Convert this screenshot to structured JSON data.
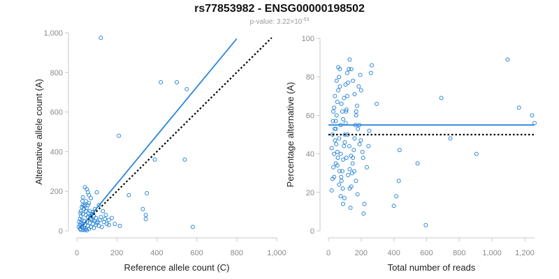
{
  "header": {
    "title": "rs77853982 - ENSG00000198502",
    "pvalue_prefix": "p-value: 3.22×10",
    "pvalue_exponent": "-53"
  },
  "colors": {
    "points": "#2b86d9",
    "fit_line": "#2b86d9",
    "reference_line": "#000000",
    "axis": "#c8c8c8"
  },
  "chart_data": [
    {
      "type": "scatter",
      "xlabel": "Reference allele count (C)",
      "ylabel": "Alternative allele count (A)",
      "xlim": [
        0,
        1000
      ],
      "ylim": [
        0,
        1000
      ],
      "xticks": [
        0,
        200,
        400,
        600,
        800,
        1000
      ],
      "yticks": [
        0,
        200,
        400,
        600,
        800,
        1000
      ],
      "xtick_labels": [
        "0",
        "200",
        "400",
        "600",
        "800",
        "1,000"
      ],
      "ytick_labels": [
        "0",
        "200",
        "400",
        "600",
        "800",
        "1,000"
      ],
      "grid": false,
      "fit_line": {
        "x": [
          15,
          800
        ],
        "y": [
          12,
          970
        ],
        "style": "solid"
      },
      "reference_line": {
        "x": [
          15,
          975
        ],
        "y": [
          15,
          975
        ],
        "style": "dotted"
      },
      "points": [
        [
          120,
          975
        ],
        [
          420,
          750
        ],
        [
          500,
          750
        ],
        [
          550,
          715
        ],
        [
          210,
          480
        ],
        [
          390,
          360
        ],
        [
          540,
          360
        ],
        [
          580,
          20
        ],
        [
          350,
          190
        ],
        [
          260,
          180
        ],
        [
          330,
          110
        ],
        [
          345,
          80
        ],
        [
          345,
          60
        ],
        [
          215,
          25
        ],
        [
          40,
          220
        ],
        [
          50,
          210
        ],
        [
          55,
          195
        ],
        [
          60,
          180
        ],
        [
          70,
          165
        ],
        [
          30,
          170
        ],
        [
          45,
          150
        ],
        [
          100,
          195
        ],
        [
          110,
          130
        ],
        [
          130,
          100
        ],
        [
          120,
          70
        ],
        [
          140,
          60
        ],
        [
          160,
          55
        ],
        [
          150,
          35
        ],
        [
          125,
          20
        ],
        [
          90,
          110
        ],
        [
          80,
          95
        ],
        [
          60,
          140
        ],
        [
          55,
          130
        ],
        [
          40,
          130
        ],
        [
          30,
          130
        ],
        [
          25,
          120
        ],
        [
          35,
          110
        ],
        [
          20,
          100
        ],
        [
          45,
          100
        ],
        [
          65,
          100
        ],
        [
          75,
          85
        ],
        [
          85,
          75
        ],
        [
          95,
          65
        ],
        [
          70,
          60
        ],
        [
          55,
          70
        ],
        [
          45,
          80
        ],
        [
          30,
          85
        ],
        [
          20,
          75
        ],
        [
          15,
          60
        ],
        [
          25,
          55
        ],
        [
          35,
          50
        ],
        [
          50,
          45
        ],
        [
          65,
          40
        ],
        [
          80,
          35
        ],
        [
          95,
          30
        ],
        [
          105,
          45
        ],
        [
          110,
          25
        ],
        [
          20,
          40
        ],
        [
          30,
          35
        ],
        [
          40,
          30
        ],
        [
          55,
          25
        ],
        [
          70,
          20
        ],
        [
          85,
          15
        ],
        [
          15,
          30
        ],
        [
          25,
          20
        ],
        [
          35,
          15
        ],
        [
          45,
          10
        ],
        [
          60,
          10
        ],
        [
          15,
          10
        ],
        [
          20,
          5
        ],
        [
          30,
          5
        ],
        [
          40,
          5
        ],
        [
          50,
          3
        ],
        [
          10,
          20
        ],
        [
          12,
          45
        ],
        [
          18,
          90
        ],
        [
          28,
          150
        ],
        [
          38,
          125
        ],
        [
          48,
          115
        ],
        [
          58,
          90
        ],
        [
          68,
          75
        ],
        [
          78,
          55
        ],
        [
          88,
          50
        ],
        [
          98,
          40
        ],
        [
          115,
          55
        ],
        [
          135,
          45
        ],
        [
          145,
          80
        ],
        [
          160,
          30
        ],
        [
          175,
          65
        ],
        [
          190,
          35
        ]
      ]
    },
    {
      "type": "scatter",
      "xlabel": "Total number of reads",
      "ylabel": "Percentage alternative (A)",
      "xlim": [
        0,
        1260
      ],
      "ylim": [
        0,
        100
      ],
      "xticks": [
        0,
        200,
        400,
        600,
        800,
        1000,
        1200
      ],
      "yticks": [
        0,
        20,
        40,
        60,
        80,
        100
      ],
      "xtick_labels": [
        "0",
        "200",
        "400",
        "600",
        "800",
        "1,000",
        "1,200"
      ],
      "ytick_labels": [
        "0",
        "20",
        "40",
        "60",
        "80",
        "100"
      ],
      "grid": false,
      "fit_line": {
        "x": [
          0,
          1260
        ],
        "y": [
          55,
          55
        ],
        "style": "solid"
      },
      "reference_line": {
        "x": [
          0,
          1260
        ],
        "y": [
          50,
          50
        ],
        "style": "dotted"
      },
      "points": [
        [
          1095,
          89
        ],
        [
          1165,
          64
        ],
        [
          1245,
          60
        ],
        [
          1260,
          56
        ],
        [
          690,
          69
        ],
        [
          745,
          48
        ],
        [
          905,
          40
        ],
        [
          595,
          3
        ],
        [
          545,
          35
        ],
        [
          435,
          42
        ],
        [
          430,
          26
        ],
        [
          415,
          18
        ],
        [
          400,
          13
        ],
        [
          295,
          66
        ],
        [
          265,
          86
        ],
        [
          260,
          82
        ],
        [
          250,
          52
        ],
        [
          245,
          44
        ],
        [
          235,
          33
        ],
        [
          220,
          14
        ],
        [
          215,
          9
        ],
        [
          200,
          73
        ],
        [
          195,
          81
        ],
        [
          185,
          75
        ],
        [
          175,
          65
        ],
        [
          170,
          60
        ],
        [
          165,
          55
        ],
        [
          160,
          48
        ],
        [
          155,
          42
        ],
        [
          150,
          38
        ],
        [
          145,
          30
        ],
        [
          140,
          23
        ],
        [
          135,
          12
        ],
        [
          130,
          89
        ],
        [
          125,
          84
        ],
        [
          120,
          77
        ],
        [
          115,
          70
        ],
        [
          110,
          63
        ],
        [
          105,
          56
        ],
        [
          100,
          50
        ],
        [
          95,
          44
        ],
        [
          90,
          37
        ],
        [
          85,
          31
        ],
        [
          80,
          26
        ],
        [
          75,
          18
        ],
        [
          70,
          84
        ],
        [
          65,
          80
        ],
        [
          60,
          73
        ],
        [
          55,
          67
        ],
        [
          50,
          60
        ],
        [
          45,
          53
        ],
        [
          40,
          47
        ],
        [
          35,
          40
        ],
        [
          30,
          33
        ],
        [
          25,
          27
        ],
        [
          20,
          21
        ],
        [
          115,
          82
        ],
        [
          105,
          76
        ],
        [
          95,
          69
        ],
        [
          85,
          62
        ],
        [
          75,
          55
        ],
        [
          65,
          48
        ],
        [
          55,
          41
        ],
        [
          45,
          35
        ],
        [
          35,
          28
        ],
        [
          30,
          62
        ],
        [
          40,
          70
        ],
        [
          50,
          78
        ],
        [
          60,
          85
        ],
        [
          70,
          75
        ],
        [
          80,
          66
        ],
        [
          90,
          58
        ],
        [
          100,
          46
        ],
        [
          110,
          38
        ],
        [
          120,
          29
        ],
        [
          130,
          22
        ],
        [
          150,
          78
        ],
        [
          160,
          71
        ],
        [
          170,
          62
        ],
        [
          180,
          53
        ],
        [
          190,
          45
        ],
        [
          140,
          84
        ],
        [
          130,
          32
        ],
        [
          90,
          14
        ],
        [
          75,
          40
        ],
        [
          65,
          24
        ],
        [
          55,
          34
        ],
        [
          45,
          57
        ],
        [
          35,
          64
        ],
        [
          25,
          50
        ],
        [
          20,
          43
        ],
        [
          28,
          57
        ],
        [
          38,
          53
        ],
        [
          48,
          45
        ],
        [
          58,
          38
        ],
        [
          68,
          31
        ],
        [
          78,
          28
        ],
        [
          88,
          22
        ],
        [
          98,
          17
        ],
        [
          108,
          62
        ],
        [
          118,
          50
        ],
        [
          128,
          44
        ],
        [
          138,
          39
        ],
        [
          148,
          35
        ],
        [
          158,
          31
        ],
        [
          168,
          26
        ],
        [
          178,
          19
        ],
        [
          188,
          55
        ],
        [
          198,
          47
        ],
        [
          208,
          41
        ],
        [
          212,
          38
        ]
      ]
    }
  ]
}
